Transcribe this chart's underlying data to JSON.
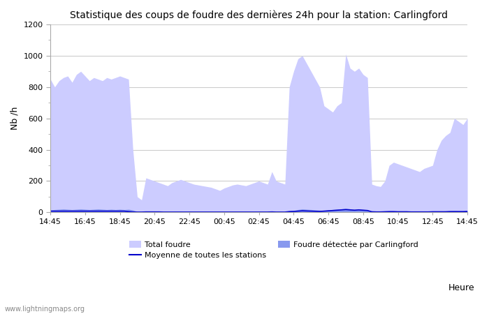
{
  "title": "Statistique des coups de foudre des dernières 24h pour la station: Carlingford",
  "ylabel": "Nb /h",
  "xlabel": "Heure",
  "ylim": [
    0,
    1200
  ],
  "yticks": [
    0,
    200,
    400,
    600,
    800,
    1000,
    1200
  ],
  "xtick_labels": [
    "14:45",
    "16:45",
    "18:45",
    "20:45",
    "22:45",
    "00:45",
    "02:45",
    "04:45",
    "06:45",
    "08:45",
    "10:45",
    "12:45",
    "14:45"
  ],
  "total_foudre_color": "#ccccff",
  "foudre_carlingford_color": "#8899ee",
  "moyenne_color": "#0000cc",
  "background_color": "#ffffff",
  "plot_bg_color": "#ffffff",
  "grid_color": "#cccccc",
  "watermark": "www.lightningmaps.org",
  "legend_total": "Total foudre",
  "legend_moyenne": "Moyenne de toutes les stations",
  "legend_carlingford": "Foudre détectée par Carlingford",
  "total_foudre": [
    850,
    800,
    840,
    860,
    870,
    830,
    880,
    900,
    870,
    840,
    860,
    850,
    840,
    860,
    850,
    860,
    870,
    860,
    850,
    400,
    100,
    80,
    220,
    210,
    200,
    190,
    180,
    170,
    190,
    200,
    210,
    200,
    190,
    180,
    175,
    170,
    165,
    160,
    150,
    140,
    155,
    165,
    175,
    180,
    175,
    170,
    180,
    190,
    200,
    190,
    180,
    260,
    200,
    190,
    180,
    800,
    900,
    980,
    1000,
    950,
    900,
    850,
    800,
    680,
    660,
    640,
    680,
    700,
    1010,
    920,
    900,
    920,
    880,
    860,
    180,
    170,
    165,
    200,
    300,
    320,
    310,
    300,
    290,
    280,
    270,
    260,
    280,
    290,
    300,
    400,
    460,
    490,
    510,
    600,
    580,
    560,
    600
  ],
  "foudre_carlingford": [
    15,
    18,
    20,
    22,
    20,
    18,
    20,
    22,
    20,
    18,
    20,
    22,
    20,
    18,
    20,
    18,
    20,
    18,
    20,
    15,
    5,
    2,
    8,
    7,
    6,
    5,
    5,
    4,
    5,
    6,
    7,
    6,
    5,
    4,
    4,
    4,
    4,
    3,
    3,
    3,
    4,
    4,
    4,
    4,
    4,
    4,
    4,
    4,
    5,
    4,
    4,
    5,
    4,
    4,
    4,
    10,
    12,
    18,
    22,
    20,
    18,
    16,
    14,
    12,
    15,
    18,
    20,
    22,
    25,
    22,
    18,
    20,
    18,
    16,
    5,
    4,
    4,
    5,
    6,
    7,
    6,
    5,
    5,
    5,
    4,
    4,
    5,
    5,
    6,
    7,
    8,
    9,
    10,
    11,
    10,
    10,
    12
  ],
  "moyenne_stations": [
    8,
    8,
    8,
    8,
    8,
    8,
    8,
    8,
    8,
    8,
    8,
    8,
    8,
    8,
    8,
    8,
    8,
    8,
    5,
    3,
    2,
    2,
    3,
    3,
    3,
    3,
    2,
    2,
    2,
    2,
    2,
    2,
    2,
    2,
    2,
    2,
    2,
    2,
    2,
    2,
    2,
    2,
    2,
    2,
    2,
    2,
    2,
    2,
    2,
    2,
    2,
    3,
    2,
    2,
    2,
    5,
    6,
    8,
    10,
    9,
    8,
    7,
    6,
    8,
    10,
    12,
    14,
    16,
    18,
    16,
    14,
    16,
    14,
    12,
    4,
    3,
    3,
    4,
    5,
    5,
    4,
    4,
    4,
    3,
    3,
    3,
    3,
    3,
    4,
    4,
    4,
    4,
    5,
    5,
    5,
    5,
    6
  ]
}
